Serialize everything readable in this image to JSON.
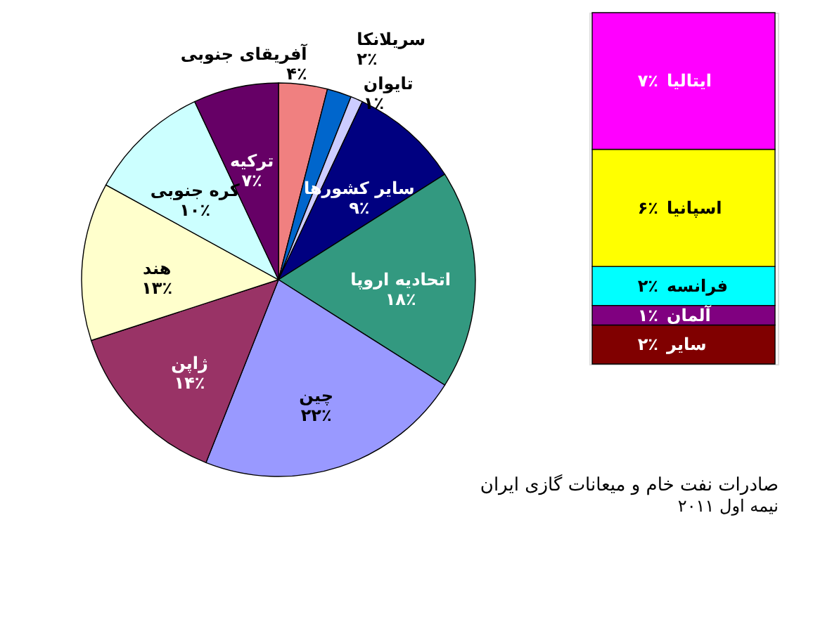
{
  "chart_data": [
    {
      "type": "pie",
      "title": "صادرات نفت خام و میعانات گازی ایران",
      "subtitle": "نیمه اول ۲۰۱۱",
      "categories": [
        "آفریقای جنوبی",
        "سریلانکا",
        "تایوان",
        "سایر کشورها",
        "اتحادیه اروپا",
        "چین",
        "ژاپن",
        "هند",
        "کره جنوبی",
        "ترکیه"
      ],
      "values": [
        4,
        2,
        1,
        9,
        18,
        22,
        14,
        13,
        10,
        7
      ],
      "value_labels": [
        "۴٪",
        "۲٪",
        "۱٪",
        "۹٪",
        "۱۸٪",
        "۲۲٪",
        "۱۴٪",
        "۱۳٪",
        "۱۰٪",
        "۷٪"
      ],
      "colors": [
        "#f08080",
        "#0066cc",
        "#ccccff",
        "#000080",
        "#339980",
        "#9999ff",
        "#993366",
        "#ffffcc",
        "#ccffff",
        "#660066"
      ]
    },
    {
      "type": "bar",
      "stacked": true,
      "categories": [
        null
      ],
      "series": [
        {
          "name": "سایر",
          "color": "#800000",
          "values": [
            2
          ],
          "value_labels": [
            "۲٪"
          ]
        },
        {
          "name": "آلمان",
          "color": "#800080",
          "values": [
            1
          ],
          "value_labels": [
            "۱٪"
          ]
        },
        {
          "name": "فرانسه",
          "color": "#00ffff",
          "values": [
            2
          ],
          "value_labels": [
            "۲٪"
          ]
        },
        {
          "name": "اسپانیا",
          "color": "#ffff00",
          "values": [
            6
          ],
          "value_labels": [
            "۶٪"
          ]
        },
        {
          "name": "ایتالیا",
          "color": "#ff00ff",
          "values": [
            7
          ],
          "value_labels": [
            "۷٪"
          ]
        }
      ]
    }
  ]
}
